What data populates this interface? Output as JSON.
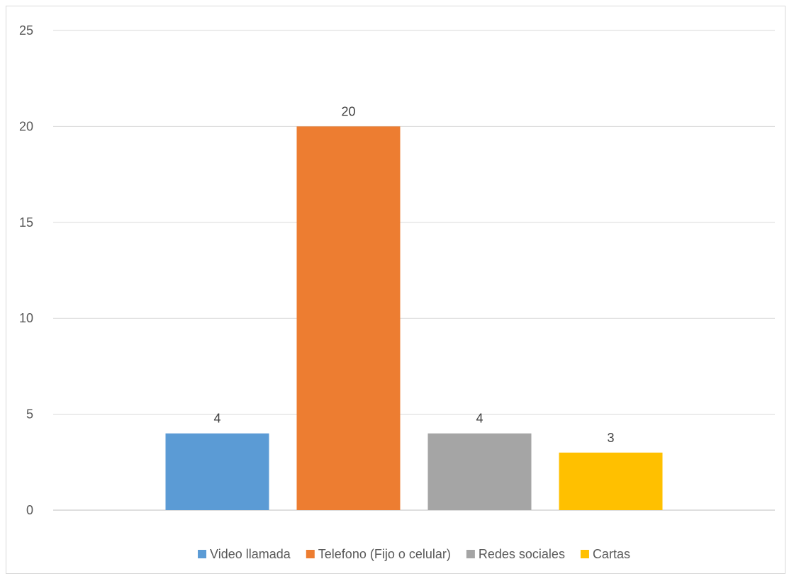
{
  "chart_data": {
    "type": "bar",
    "title": "",
    "xlabel": "",
    "ylabel": "",
    "ylim": [
      0,
      25
    ],
    "yticks": [
      0,
      5,
      10,
      15,
      20,
      25
    ],
    "grid": true,
    "legend_position": "bottom",
    "series": [
      {
        "name": "Video llamada",
        "value": 4,
        "color": "#5B9BD5"
      },
      {
        "name": "Telefono (Fijo o celular)",
        "value": 20,
        "color": "#ED7D31"
      },
      {
        "name": "Redes sociales",
        "value": 4,
        "color": "#A5A5A5"
      },
      {
        "name": "Cartas",
        "value": 3,
        "color": "#FFC000"
      }
    ]
  }
}
